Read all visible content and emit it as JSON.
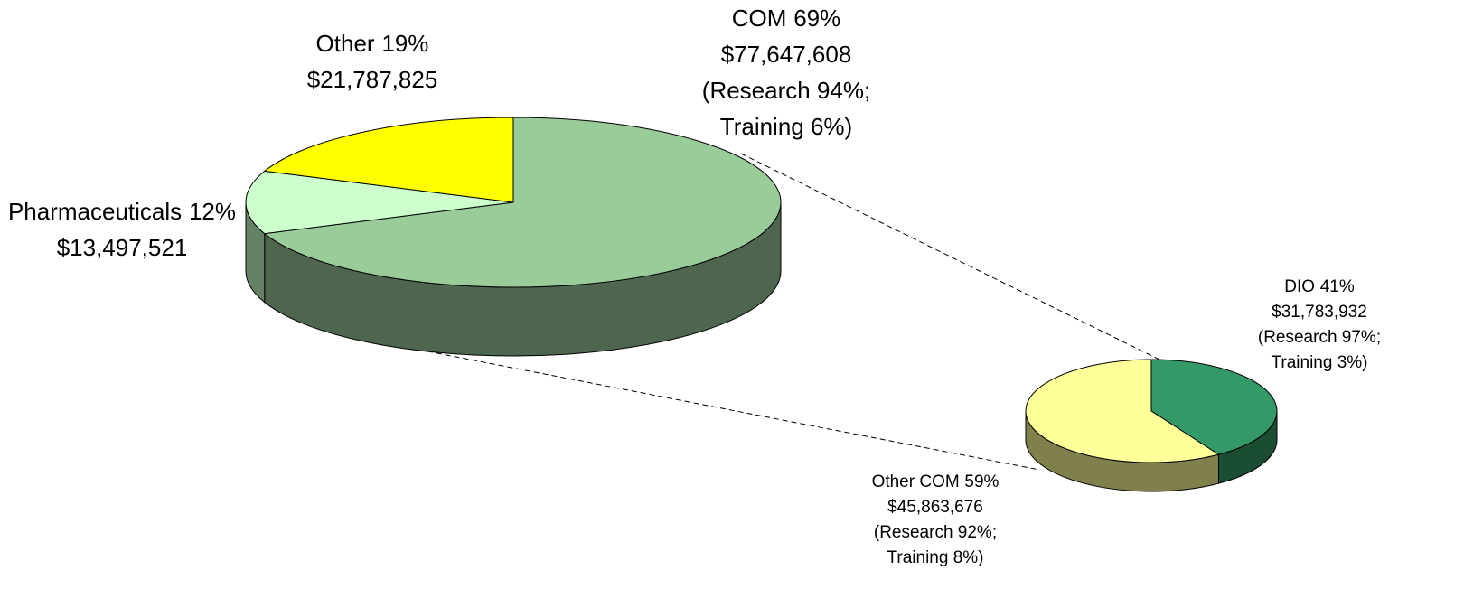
{
  "chart_data": [
    {
      "type": "pie",
      "categories": [
        "COM",
        "Pharmaceuticals",
        "Other"
      ],
      "values": [
        69,
        12,
        19
      ],
      "value_labels": [
        "69%",
        "12%",
        "19%"
      ],
      "amounts": [
        {
          "value": 77647608,
          "label": "$77,647,608"
        },
        {
          "value": 13497521,
          "label": "$13,497,521"
        },
        {
          "value": 21787825,
          "label": "$21,787,825"
        }
      ],
      "notes": [
        [
          "(Research 94%;",
          "Training 6%)"
        ],
        [],
        []
      ],
      "colors": [
        "#99cc99",
        "#ccffcc",
        "#ffff00"
      ]
    },
    {
      "type": "pie",
      "categories": [
        "DIO",
        "Other COM"
      ],
      "values": [
        41,
        59
      ],
      "value_labels": [
        "41%",
        "59%"
      ],
      "amounts": [
        {
          "value": 31783932,
          "label": "$31,783,932"
        },
        {
          "value": 45863676,
          "label": "$45,863,676"
        }
      ],
      "notes": [
        [
          "(Research 97%;",
          "Training 3%)"
        ],
        [
          "(Research 92%;",
          "Training 8%)"
        ]
      ],
      "colors": [
        "#339966",
        "#ffff99"
      ]
    }
  ]
}
